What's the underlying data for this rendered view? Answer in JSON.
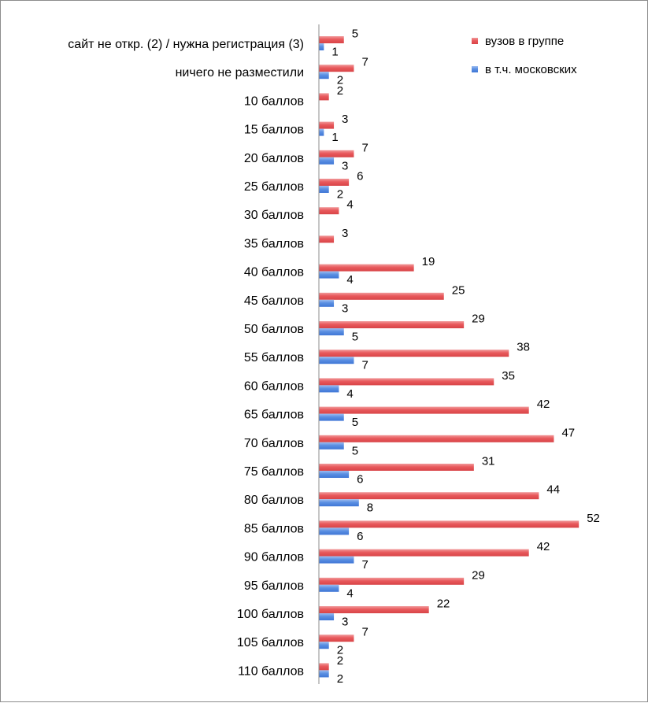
{
  "colors": {
    "red": "#e8595c",
    "blue": "#5b8fe2"
  },
  "legend": [
    {
      "label": "вузов в группе",
      "color": "red"
    },
    {
      "label": "в т.ч. московских",
      "color": "blue"
    }
  ],
  "chart_data": {
    "type": "bar",
    "orientation": "horizontal",
    "title": "",
    "xlabel": "",
    "ylabel": "",
    "xlim": [
      0,
      65
    ],
    "grid": false,
    "legend_position": "top-right",
    "categories": [
      "сайт не откр. (2) / нужна регистрация (3)",
      "ничего не разместили",
      "10 баллов",
      "15 баллов",
      "20 баллов",
      "25 баллов",
      "30 баллов",
      "35 баллов",
      "40 баллов",
      "45 баллов",
      "50 баллов",
      "55 баллов",
      "60 баллов",
      "65 баллов",
      "70 баллов",
      "75 баллов",
      "80 баллов",
      "85 баллов",
      "90 баллов",
      "95 баллов",
      "100 баллов",
      "105 баллов",
      "110 баллов"
    ],
    "series": [
      {
        "name": "вузов в группе",
        "color": "red",
        "values": [
          5,
          7,
          2,
          3,
          7,
          6,
          4,
          3,
          19,
          25,
          29,
          38,
          35,
          42,
          47,
          31,
          44,
          52,
          42,
          29,
          22,
          7,
          2
        ]
      },
      {
        "name": "в т.ч. московских",
        "color": "blue",
        "values": [
          1,
          2,
          null,
          1,
          3,
          2,
          null,
          null,
          4,
          3,
          5,
          7,
          4,
          5,
          5,
          6,
          8,
          6,
          7,
          4,
          3,
          2,
          2
        ]
      }
    ]
  }
}
